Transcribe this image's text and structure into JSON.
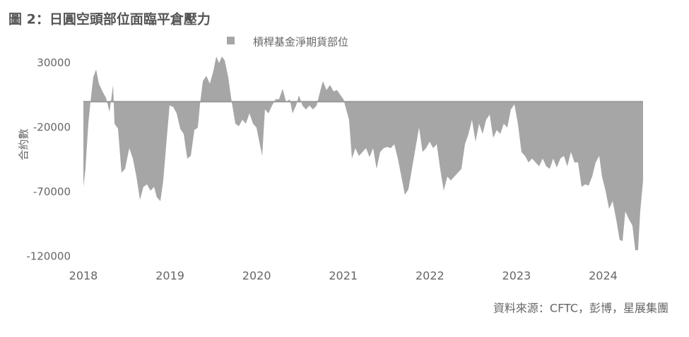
{
  "chart_data": {
    "type": "area",
    "title": "圖 2：日圓空頭部位面臨平倉壓力",
    "y_label": "合約數",
    "source": "資料來源：CFTC，彭博，星展集團",
    "x": [
      2018.0,
      2018.024,
      2018.057,
      2018.082,
      2018.114,
      2018.147,
      2018.179,
      2018.22,
      2018.261,
      2018.302,
      2018.343,
      2018.359,
      2018.4,
      2018.44,
      2018.481,
      2018.53,
      2018.571,
      2018.612,
      2018.653,
      2018.693,
      2018.734,
      2018.775,
      2018.816,
      2018.848,
      2018.889,
      2018.922,
      2018.963,
      2018.995,
      2019.036,
      2019.077,
      2019.118,
      2019.158,
      2019.199,
      2019.24,
      2019.281,
      2019.321,
      2019.346,
      2019.379,
      2019.419,
      2019.46,
      2019.501,
      2019.534,
      2019.566,
      2019.599,
      2019.631,
      2019.672,
      2019.713,
      2019.754,
      2019.795,
      2019.835,
      2019.876,
      2019.917,
      2019.958,
      2019.998,
      2020.031,
      2020.064,
      2020.096,
      2020.137,
      2020.178,
      2020.219,
      2020.259,
      2020.3,
      2020.341,
      2020.382,
      2020.414,
      2020.455,
      2020.488,
      2020.529,
      2020.569,
      2020.61,
      2020.651,
      2020.692,
      2020.733,
      2020.765,
      2020.806,
      2020.847,
      2020.888,
      2020.928,
      2020.969,
      2021.002,
      2021.034,
      2021.067,
      2021.1,
      2021.14,
      2021.181,
      2021.222,
      2021.263,
      2021.304,
      2021.344,
      2021.385,
      2021.426,
      2021.467,
      2021.508,
      2021.548,
      2021.589,
      2021.63,
      2021.671,
      2021.711,
      2021.752,
      2021.793,
      2021.834,
      2021.875,
      2021.915,
      2021.956,
      2021.997,
      2022.038,
      2022.079,
      2022.119,
      2022.16,
      2022.201,
      2022.242,
      2022.282,
      2022.323,
      2022.364,
      2022.405,
      2022.446,
      2022.486,
      2022.527,
      2022.568,
      2022.609,
      2022.649,
      2022.69,
      2022.731,
      2022.772,
      2022.813,
      2022.853,
      2022.894,
      2022.935,
      2022.976,
      2023.016,
      2023.057,
      2023.098,
      2023.139,
      2023.18,
      2023.22,
      2023.261,
      2023.302,
      2023.343,
      2023.384,
      2023.424,
      2023.465,
      2023.506,
      2023.547,
      2023.587,
      2023.628,
      2023.669,
      2023.71,
      2023.751,
      2023.791,
      2023.832,
      2023.873,
      2023.914,
      2023.955,
      2023.987,
      2024.028,
      2024.069,
      2024.11,
      2024.15,
      2024.191,
      2024.224,
      2024.256,
      2024.297,
      2024.338,
      2024.371,
      2024.403,
      2024.428,
      2024.461
    ],
    "series": [
      {
        "name": "槓桿基金淨期貨部位",
        "color": "#a6a6a6",
        "values": [
          -66000,
          -52000,
          -17000,
          0,
          19000,
          25000,
          14000,
          8000,
          3000,
          -8000,
          13000,
          -17000,
          -21000,
          -55000,
          -52000,
          -36000,
          -44000,
          -58000,
          -76000,
          -66000,
          -64000,
          -69000,
          -66000,
          -74000,
          -77000,
          -61000,
          -28000,
          -3000,
          -4000,
          -9000,
          -21000,
          -25000,
          -44000,
          -42000,
          -22000,
          -20000,
          -2000,
          16000,
          20000,
          14000,
          24000,
          35000,
          30000,
          35000,
          32000,
          19000,
          -500,
          -17000,
          -19000,
          -14000,
          -17000,
          -9000,
          -17000,
          -20000,
          -31000,
          -42000,
          -6000,
          -9000,
          -3000,
          2000,
          2000,
          10000,
          -500,
          2000,
          -9000,
          -3000,
          5000,
          -3000,
          -6000,
          -3000,
          -6000,
          -3000,
          8000,
          16000,
          9000,
          13000,
          8000,
          9000,
          5000,
          2000,
          -6000,
          -14000,
          -44000,
          -36000,
          -42000,
          -39000,
          -36000,
          -43000,
          -36000,
          -52000,
          -39000,
          -36000,
          -35000,
          -36000,
          -33000,
          -44000,
          -58000,
          -72000,
          -68000,
          -52000,
          -36000,
          -20000,
          -39000,
          -36000,
          -31000,
          -36000,
          -33000,
          -52000,
          -69000,
          -58000,
          -61000,
          -58000,
          -55000,
          -52000,
          -33000,
          -25000,
          -14000,
          -31000,
          -17000,
          -25000,
          -14000,
          -10000,
          -28000,
          -22000,
          -25000,
          -17000,
          -20000,
          -6000,
          -2000,
          -17000,
          -39000,
          -42000,
          -47000,
          -44000,
          -47000,
          -50000,
          -44000,
          -50000,
          -52000,
          -44000,
          -51000,
          -44000,
          -42000,
          -50000,
          -39000,
          -47000,
          -47000,
          -66000,
          -64000,
          -65000,
          -58000,
          -47000,
          -42000,
          -58000,
          -69000,
          -83000,
          -77000,
          -91000,
          -107000,
          -108000,
          -85000,
          -91000,
          -96000,
          -115000,
          -115000,
          -85000,
          -61000
        ]
      }
    ],
    "xlim": [
      2018,
      2024.461
    ],
    "xticks": [
      2018,
      2019,
      2020,
      2021,
      2022,
      2023,
      2024
    ],
    "ylim": [
      -120000,
      40000
    ],
    "yticks": [
      -120000,
      -70000,
      -20000,
      30000
    ],
    "grid": false
  }
}
